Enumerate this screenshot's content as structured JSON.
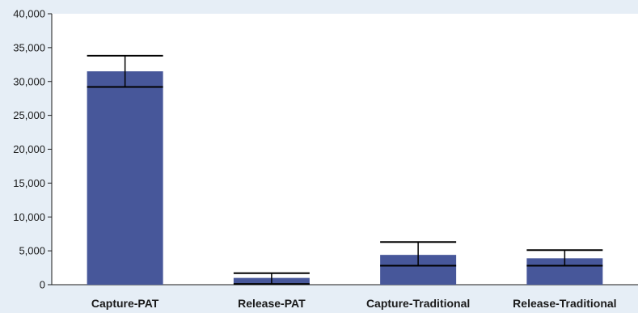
{
  "chart_data": {
    "type": "bar",
    "categories": [
      "Capture-PAT",
      "Release-PAT",
      "Capture-Traditional",
      "Release-Traditional"
    ],
    "values": [
      31500,
      1000,
      4400,
      3900
    ],
    "error_bars": {
      "upper": [
        33800,
        1700,
        6300,
        5100
      ],
      "lower": [
        29200,
        100,
        2800,
        2800
      ]
    },
    "y_ticks": [
      "0",
      "5,000",
      "10,000",
      "15,000",
      "20,000",
      "25,000",
      "30,000",
      "35,000",
      "40,000"
    ],
    "ylim": [
      0,
      40000
    ],
    "title": "",
    "xlabel": "",
    "ylabel": "",
    "grid": false,
    "legend": "none",
    "colors": {
      "background": "#e6eef6",
      "plot_area": "#ffffff",
      "bar": "#47579a",
      "axis": "#1a1a1a",
      "error_bar": "#000000"
    }
  }
}
